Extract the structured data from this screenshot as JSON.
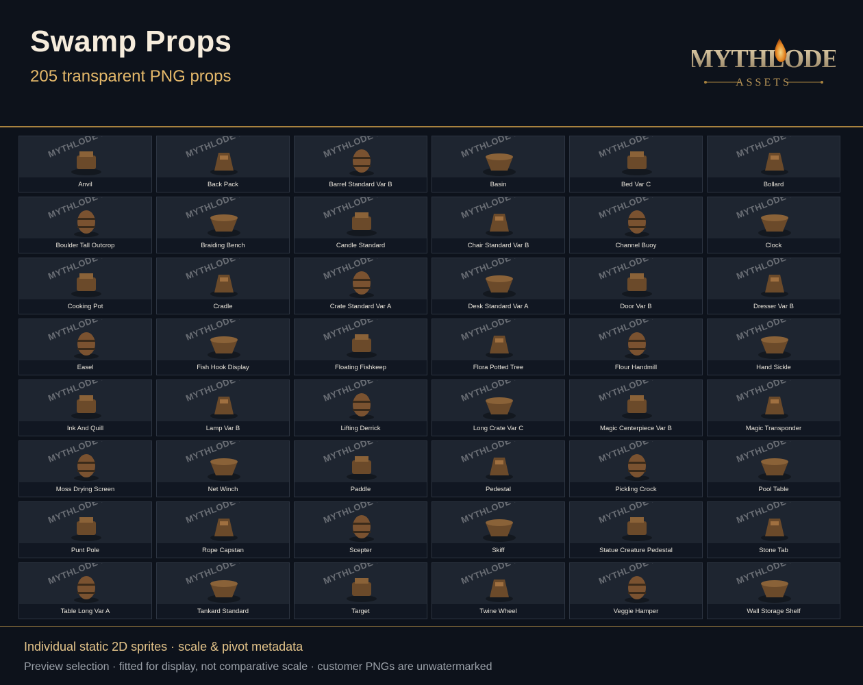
{
  "header": {
    "title": "Swamp Props",
    "subtitle": "205 transparent PNG props",
    "logo_text": "MYTHLODE",
    "logo_tagline": "ASSETS"
  },
  "watermark": "MYTHLODE PREVIEW",
  "props": [
    "Anvil",
    "Back Pack",
    "Barrel Standard Var B",
    "Basin",
    "Bed Var C",
    "Bollard",
    "Boulder Tall Outcrop",
    "Braiding Bench",
    "Candle Standard",
    "Chair Standard Var B",
    "Channel Buoy",
    "Clock",
    "Cooking Pot",
    "Cradle",
    "Crate Standard Var A",
    "Desk Standard Var A",
    "Door Var B",
    "Dresser Var B",
    "Easel",
    "Fish Hook Display",
    "Floating Fishkeep",
    "Flora Potted Tree",
    "Flour Handmill",
    "Hand Sickle",
    "Ink And Quill",
    "Lamp Var B",
    "Lifting Derrick",
    "Long Crate Var C",
    "Magic Centerpiece Var B",
    "Magic Transponder",
    "Moss Drying Screen",
    "Net Winch",
    "Paddle",
    "Pedestal",
    "Pickling Crock",
    "Pool Table",
    "Punt Pole",
    "Rope Capstan",
    "Scepter",
    "Skiff",
    "Statue Creature Pedestal",
    "Stone Tab",
    "Table Long Var A",
    "Tankard Standard",
    "Target",
    "Twine Wheel",
    "Veggie Hamper",
    "Wall Storage Shelf"
  ],
  "footer": {
    "main": "Individual static 2D sprites · scale & pivot metadata",
    "sub": "Preview selection · fitted for display, not comparative scale · customer PNGs are unwatermarked"
  },
  "colors": {
    "background": "#0d121b",
    "accent_gold": "#e4b86a",
    "rule_gold": "#a8823f",
    "cell_bg": "#1e2530",
    "label_bg": "#111722"
  }
}
